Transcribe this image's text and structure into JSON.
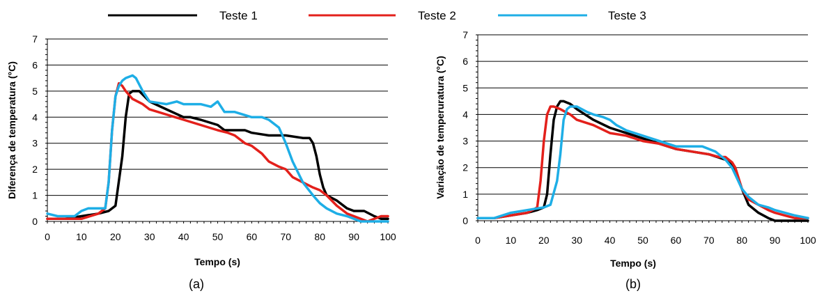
{
  "legend": [
    {
      "name": "Teste 1",
      "color": "#000000"
    },
    {
      "name": "Teste 2",
      "color": "#e3201b"
    },
    {
      "name": "Teste 3",
      "color": "#1eaee6"
    }
  ],
  "chart_data": [
    {
      "type": "line",
      "panel_label": "(a)",
      "xlabel": "Tempo (s)",
      "ylabel": "Diferença de temperatura (°C)",
      "xlim": [
        0,
        100
      ],
      "ylim": [
        0,
        7
      ],
      "xticks": [
        0,
        10,
        20,
        30,
        40,
        50,
        60,
        70,
        80,
        90,
        100
      ],
      "yticks": [
        0,
        1,
        2,
        3,
        4,
        5,
        6,
        7
      ],
      "grid": "horizontal",
      "series": [
        {
          "name": "Teste 1",
          "color": "#000000",
          "x": [
            0,
            5,
            10,
            15,
            18,
            20,
            22,
            23,
            24,
            25,
            27,
            30,
            35,
            40,
            42,
            45,
            50,
            52,
            55,
            58,
            60,
            65,
            70,
            75,
            77,
            78,
            79,
            80,
            81,
            82,
            85,
            88,
            90,
            93,
            96,
            98,
            100
          ],
          "y": [
            0.1,
            0.1,
            0.2,
            0.3,
            0.4,
            0.6,
            2.5,
            4.0,
            4.9,
            5.0,
            5.0,
            4.6,
            4.3,
            4.0,
            4.0,
            3.9,
            3.7,
            3.5,
            3.5,
            3.5,
            3.4,
            3.3,
            3.3,
            3.2,
            3.2,
            3.0,
            2.5,
            1.8,
            1.3,
            1.0,
            0.8,
            0.5,
            0.4,
            0.4,
            0.2,
            0.1,
            0.1
          ]
        },
        {
          "name": "Teste 2",
          "color": "#e3201b",
          "x": [
            0,
            5,
            10,
            15,
            17,
            18,
            19,
            20,
            21,
            22,
            23,
            25,
            28,
            30,
            35,
            40,
            45,
            50,
            53,
            55,
            58,
            60,
            63,
            65,
            68,
            70,
            72,
            75,
            78,
            80,
            82,
            85,
            88,
            90,
            92,
            94,
            96,
            98,
            100
          ],
          "y": [
            0.1,
            0.1,
            0.1,
            0.3,
            0.5,
            1.5,
            3.5,
            4.8,
            5.3,
            5.2,
            5.0,
            4.7,
            4.5,
            4.3,
            4.1,
            3.9,
            3.7,
            3.5,
            3.4,
            3.3,
            3.0,
            2.9,
            2.6,
            2.3,
            2.1,
            2.0,
            1.7,
            1.5,
            1.3,
            1.2,
            1.0,
            0.6,
            0.3,
            0.2,
            0.1,
            0.0,
            0.1,
            0.2,
            0.2
          ]
        },
        {
          "name": "Teste 3",
          "color": "#1eaee6",
          "x": [
            0,
            3,
            5,
            8,
            10,
            12,
            15,
            17,
            18,
            19,
            20,
            21,
            22,
            23,
            25,
            26,
            28,
            30,
            35,
            38,
            40,
            45,
            48,
            50,
            52,
            55,
            60,
            63,
            65,
            68,
            70,
            72,
            75,
            78,
            80,
            82,
            85,
            88,
            90,
            92,
            94,
            96,
            98,
            100
          ],
          "y": [
            0.3,
            0.2,
            0.2,
            0.2,
            0.4,
            0.5,
            0.5,
            0.5,
            1.5,
            3.5,
            4.8,
            5.2,
            5.4,
            5.5,
            5.6,
            5.5,
            5.0,
            4.6,
            4.5,
            4.6,
            4.5,
            4.5,
            4.4,
            4.6,
            4.2,
            4.2,
            4.0,
            4.0,
            3.9,
            3.6,
            3.0,
            2.3,
            1.5,
            1.0,
            0.7,
            0.5,
            0.3,
            0.2,
            0.1,
            0.0,
            0.0,
            0.0,
            0.0,
            0.0
          ]
        }
      ]
    },
    {
      "type": "line",
      "panel_label": "(b)",
      "xlabel": "Tempo (s)",
      "ylabel": "Variação de temperuratura (°C)",
      "xlim": [
        0,
        100
      ],
      "ylim": [
        0,
        7
      ],
      "xticks": [
        0,
        10,
        20,
        30,
        40,
        50,
        60,
        70,
        80,
        90,
        100
      ],
      "yticks": [
        0,
        1,
        2,
        3,
        4,
        5,
        6,
        7
      ],
      "grid": "horizontal",
      "series": [
        {
          "name": "Teste 1",
          "color": "#000000",
          "x": [
            0,
            5,
            10,
            15,
            18,
            20,
            21,
            22,
            23,
            24,
            25,
            26,
            28,
            30,
            35,
            40,
            45,
            50,
            55,
            60,
            65,
            70,
            75,
            77,
            78,
            80,
            82,
            85,
            88,
            90,
            93,
            96,
            100
          ],
          "y": [
            0.1,
            0.1,
            0.2,
            0.3,
            0.4,
            0.5,
            1.0,
            2.5,
            3.8,
            4.3,
            4.5,
            4.5,
            4.4,
            4.2,
            3.8,
            3.5,
            3.3,
            3.1,
            2.9,
            2.7,
            2.6,
            2.5,
            2.3,
            2.1,
            1.8,
            1.2,
            0.6,
            0.3,
            0.1,
            0.0,
            0.0,
            0.0,
            0.0
          ]
        },
        {
          "name": "Teste 2",
          "color": "#e3201b",
          "x": [
            0,
            5,
            10,
            15,
            18,
            19,
            20,
            21,
            22,
            23,
            25,
            28,
            30,
            35,
            40,
            45,
            50,
            55,
            60,
            65,
            70,
            73,
            75,
            77,
            78,
            80,
            82,
            85,
            88,
            90,
            93,
            96,
            100
          ],
          "y": [
            0.1,
            0.1,
            0.2,
            0.3,
            0.5,
            1.5,
            3.0,
            4.0,
            4.3,
            4.3,
            4.2,
            4.0,
            3.8,
            3.6,
            3.3,
            3.2,
            3.0,
            2.9,
            2.7,
            2.6,
            2.5,
            2.4,
            2.4,
            2.2,
            2.0,
            1.2,
            0.8,
            0.6,
            0.4,
            0.3,
            0.2,
            0.1,
            0.1
          ]
        },
        {
          "name": "Teste 3",
          "color": "#1eaee6",
          "x": [
            0,
            5,
            10,
            15,
            20,
            22,
            24,
            25,
            26,
            27,
            28,
            30,
            33,
            35,
            38,
            40,
            42,
            45,
            50,
            55,
            60,
            65,
            68,
            70,
            72,
            75,
            77,
            80,
            82,
            85,
            88,
            90,
            93,
            96,
            100
          ],
          "y": [
            0.1,
            0.1,
            0.3,
            0.4,
            0.5,
            0.6,
            1.5,
            2.5,
            3.8,
            4.2,
            4.3,
            4.3,
            4.1,
            4.0,
            3.9,
            3.8,
            3.6,
            3.4,
            3.2,
            3.0,
            2.8,
            2.8,
            2.8,
            2.7,
            2.6,
            2.3,
            2.0,
            1.2,
            0.9,
            0.6,
            0.5,
            0.4,
            0.3,
            0.2,
            0.1
          ]
        }
      ]
    }
  ]
}
